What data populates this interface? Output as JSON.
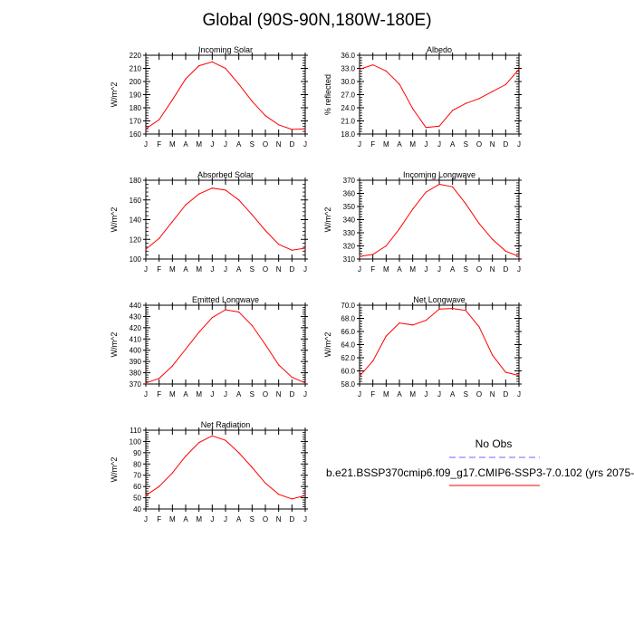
{
  "page": {
    "title": "Global (90S-90N,180W-180E)"
  },
  "legend": {
    "obs_label": "No Obs",
    "run_label": "b.e21.BSSP370cmip6.f09_g17.CMIP6-SSP3-7.0.102 (yrs 2075-",
    "obs_color": "#6a6aff",
    "run_color": "#ff0000"
  },
  "chart_data": [
    {
      "type": "line",
      "title": "Incoming Solar",
      "ylabel": "W/m^2",
      "categories": [
        "J",
        "F",
        "M",
        "A",
        "M",
        "J",
        "J",
        "A",
        "S",
        "O",
        "N",
        "D",
        "J"
      ],
      "ylim": [
        160,
        220
      ],
      "yticks": [
        "160",
        "170",
        "180",
        "190",
        "200",
        "210",
        "220"
      ],
      "values": [
        164,
        171,
        186,
        202,
        212,
        215,
        210,
        198,
        185,
        174,
        167,
        163.5,
        164
      ]
    },
    {
      "type": "line",
      "title": "Albedo",
      "ylabel": "% reflected",
      "categories": [
        "J",
        "F",
        "M",
        "A",
        "M",
        "J",
        "J",
        "A",
        "S",
        "O",
        "N",
        "D",
        "J"
      ],
      "ylim": [
        18,
        36
      ],
      "yticks": [
        "18.0",
        "21.0",
        "24.0",
        "27.0",
        "30.0",
        "33.0",
        "36.0"
      ],
      "values": [
        32.8,
        33.8,
        32.4,
        29.4,
        23.8,
        19.5,
        19.8,
        23.4,
        25.0,
        26.1,
        27.7,
        29.3,
        32.8
      ]
    },
    {
      "type": "line",
      "title": "Absorbed Solar",
      "ylabel": "W/m^2",
      "categories": [
        "J",
        "F",
        "M",
        "A",
        "M",
        "J",
        "J",
        "A",
        "S",
        "O",
        "N",
        "D",
        "J"
      ],
      "ylim": [
        100,
        180
      ],
      "yticks": [
        "100",
        "120",
        "140",
        "160",
        "180"
      ],
      "values": [
        110,
        121,
        138,
        155,
        166,
        172,
        170,
        160,
        145,
        129,
        115,
        109,
        111
      ]
    },
    {
      "type": "line",
      "title": "Incoming Longwave",
      "ylabel": "W/m^2",
      "categories": [
        "J",
        "F",
        "M",
        "A",
        "M",
        "J",
        "J",
        "A",
        "S",
        "O",
        "N",
        "D",
        "J"
      ],
      "ylim": [
        310,
        370
      ],
      "yticks": [
        "310",
        "320",
        "330",
        "340",
        "350",
        "360",
        "370"
      ],
      "values": [
        312,
        313.5,
        320,
        333,
        348,
        361,
        367,
        365,
        352,
        337,
        325,
        316,
        312
      ]
    },
    {
      "type": "line",
      "title": "Emitted Longwave",
      "ylabel": "W/m^2",
      "categories": [
        "J",
        "F",
        "M",
        "A",
        "M",
        "J",
        "J",
        "A",
        "S",
        "O",
        "N",
        "D",
        "J"
      ],
      "ylim": [
        370,
        440
      ],
      "yticks": [
        "370",
        "380",
        "390",
        "400",
        "410",
        "420",
        "430",
        "440"
      ],
      "values": [
        371,
        375,
        386,
        401,
        416,
        429,
        436,
        434,
        422,
        405,
        387,
        376,
        371
      ]
    },
    {
      "type": "line",
      "title": "Net Longwave",
      "ylabel": "W/m^2",
      "categories": [
        "J",
        "F",
        "M",
        "A",
        "M",
        "J",
        "J",
        "A",
        "S",
        "O",
        "N",
        "D",
        "J"
      ],
      "ylim": [
        58,
        70
      ],
      "yticks": [
        "58.0",
        "60.0",
        "62.0",
        "64.0",
        "66.0",
        "68.0",
        "70.0"
      ],
      "values": [
        59.2,
        61.5,
        65.3,
        67.3,
        67.0,
        67.7,
        69.4,
        69.5,
        69.2,
        66.7,
        62.4,
        59.8,
        59.3
      ]
    },
    {
      "type": "line",
      "title": "Net Radiation",
      "ylabel": "W/m^2",
      "categories": [
        "J",
        "F",
        "M",
        "A",
        "M",
        "J",
        "J",
        "A",
        "S",
        "O",
        "N",
        "D",
        "J"
      ],
      "ylim": [
        40,
        110
      ],
      "yticks": [
        "40",
        "50",
        "60",
        "70",
        "80",
        "90",
        "100",
        "110"
      ],
      "values": [
        52,
        60,
        72,
        87,
        99,
        105,
        101,
        90,
        77,
        63,
        53,
        49,
        52
      ]
    }
  ]
}
